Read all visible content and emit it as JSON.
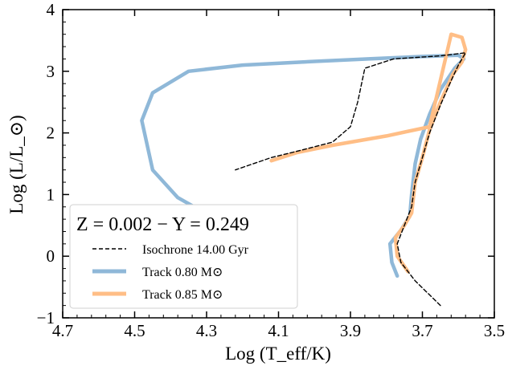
{
  "chart_data": {
    "type": "line",
    "title": "",
    "xlabel": "Log (T_eff/K)",
    "ylabel": "Log (L/L_⊙)",
    "xlim": [
      4.7,
      3.5
    ],
    "ylim": [
      -1,
      4
    ],
    "x_ticks": [
      "4.7",
      "4.5",
      "4.3",
      "4.1",
      "3.9",
      "3.7",
      "3.5"
    ],
    "y_ticks": [
      "−1",
      "0",
      "1",
      "2",
      "3",
      "4"
    ],
    "grid": false,
    "legend": {
      "placement": "lower-left",
      "title": "Z = 0.002 − Y = 0.249",
      "entries": [
        "Isochrone 14.00 Gyr",
        "Track 0.80 M⊙",
        "Track 0.85 M⊙"
      ]
    },
    "series": [
      {
        "name": "Track 0.80 M⊙",
        "color": "#8fb8d8",
        "style": "solid",
        "points": [
          [
            3.77,
            -0.32
          ],
          [
            3.785,
            -0.1
          ],
          [
            3.79,
            0.2
          ],
          [
            3.76,
            0.42
          ],
          [
            3.735,
            0.65
          ],
          [
            3.73,
            1.0
          ],
          [
            3.72,
            1.5
          ],
          [
            3.705,
            1.9
          ],
          [
            3.68,
            2.3
          ],
          [
            3.65,
            2.7
          ],
          [
            3.61,
            3.05
          ],
          [
            3.585,
            3.2
          ],
          [
            3.6,
            3.26
          ],
          [
            3.7,
            3.24
          ],
          [
            3.85,
            3.2
          ],
          [
            4.0,
            3.16
          ],
          [
            4.2,
            3.1
          ],
          [
            4.35,
            3.0
          ],
          [
            4.45,
            2.65
          ],
          [
            4.48,
            2.2
          ],
          [
            4.45,
            1.4
          ],
          [
            4.38,
            0.95
          ],
          [
            4.31,
            0.72
          ]
        ]
      },
      {
        "name": "Track 0.85 M⊙",
        "color": "#ffbe86",
        "style": "solid",
        "points": [
          [
            3.74,
            -0.25
          ],
          [
            3.77,
            0.0
          ],
          [
            3.775,
            0.3
          ],
          [
            3.75,
            0.5
          ],
          [
            3.73,
            0.7
          ],
          [
            3.72,
            1.2
          ],
          [
            3.7,
            1.6
          ],
          [
            3.68,
            2.05
          ],
          [
            3.65,
            2.5
          ],
          [
            3.615,
            2.95
          ],
          [
            3.59,
            3.15
          ],
          [
            3.58,
            3.35
          ],
          [
            3.59,
            3.55
          ],
          [
            3.62,
            3.6
          ],
          [
            3.68,
            2.1
          ],
          [
            3.8,
            1.95
          ],
          [
            3.95,
            1.8
          ],
          [
            4.05,
            1.68
          ],
          [
            4.12,
            1.55
          ]
        ]
      },
      {
        "name": "Isochrone 14.00 Gyr",
        "color": "#000000",
        "style": "dashed",
        "points": [
          [
            3.65,
            -0.8
          ],
          [
            3.72,
            -0.4
          ],
          [
            3.76,
            -0.1
          ],
          [
            3.77,
            0.2
          ],
          [
            3.75,
            0.5
          ],
          [
            3.73,
            0.8
          ],
          [
            3.72,
            1.2
          ],
          [
            3.7,
            1.6
          ],
          [
            3.68,
            2.0
          ],
          [
            3.65,
            2.45
          ],
          [
            3.62,
            2.85
          ],
          [
            3.6,
            3.1
          ],
          [
            3.58,
            3.3
          ],
          [
            3.65,
            3.25
          ],
          [
            3.78,
            3.2
          ],
          [
            3.86,
            3.05
          ],
          [
            3.88,
            2.5
          ],
          [
            3.9,
            2.1
          ],
          [
            3.95,
            1.85
          ],
          [
            4.05,
            1.7
          ],
          [
            4.12,
            1.6
          ],
          [
            4.18,
            1.48
          ],
          [
            4.22,
            1.4
          ]
        ]
      }
    ]
  }
}
